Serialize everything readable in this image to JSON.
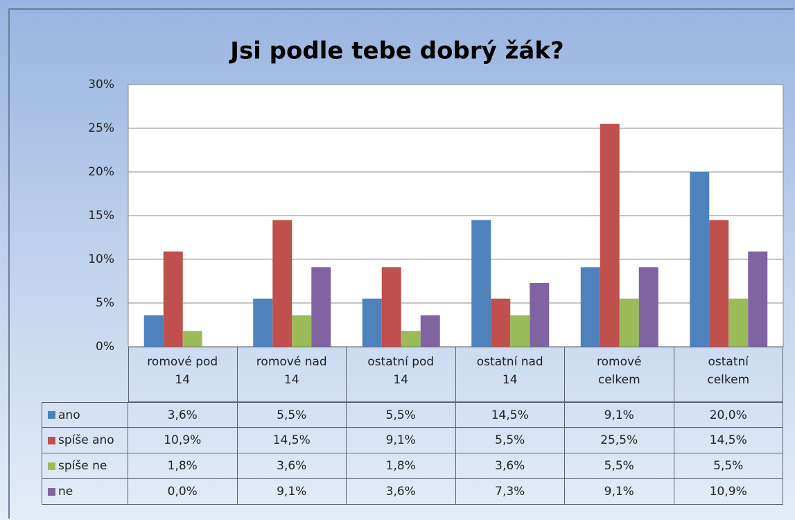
{
  "chart_data": {
    "type": "bar",
    "title": "Jsi podle tebe dobrý žák?",
    "categories": [
      "romové pod 14",
      "romové nad 14",
      "ostatní pod 14",
      "ostatní nad 14",
      "romové celkem",
      "ostatní celkem"
    ],
    "series": [
      {
        "name": "ano",
        "color": "#4f81bd",
        "values": [
          3.6,
          5.5,
          5.5,
          14.5,
          9.1,
          20.0
        ],
        "value_labels": [
          "3,6%",
          "5,5%",
          "5,5%",
          "14,5%",
          "9,1%",
          "20,0%"
        ]
      },
      {
        "name": "spíše ano",
        "color": "#c0504d",
        "values": [
          10.9,
          14.5,
          9.1,
          5.5,
          25.5,
          14.5
        ],
        "value_labels": [
          "10,9%",
          "14,5%",
          "9,1%",
          "5,5%",
          "25,5%",
          "14,5%"
        ]
      },
      {
        "name": "spíše ne",
        "color": "#9bbb59",
        "values": [
          1.8,
          3.6,
          1.8,
          3.6,
          5.5,
          5.5
        ],
        "value_labels": [
          "1,8%",
          "3,6%",
          "1,8%",
          "3,6%",
          "5,5%",
          "5,5%"
        ]
      },
      {
        "name": "ne",
        "color": "#8064a2",
        "values": [
          0.0,
          9.1,
          3.6,
          7.3,
          9.1,
          10.9
        ],
        "value_labels": [
          "0,0%",
          "9,1%",
          "3,6%",
          "7,3%",
          "9,1%",
          "10,9%"
        ]
      }
    ],
    "ylim": [
      0,
      30
    ],
    "yticks": [
      {
        "value": 0,
        "label": "0%"
      },
      {
        "value": 5,
        "label": "5%"
      },
      {
        "value": 10,
        "label": "10%"
      },
      {
        "value": 15,
        "label": "15%"
      },
      {
        "value": 20,
        "label": "20%"
      },
      {
        "value": 25,
        "label": "25%"
      },
      {
        "value": 30,
        "label": "30%"
      }
    ],
    "grid": true
  }
}
